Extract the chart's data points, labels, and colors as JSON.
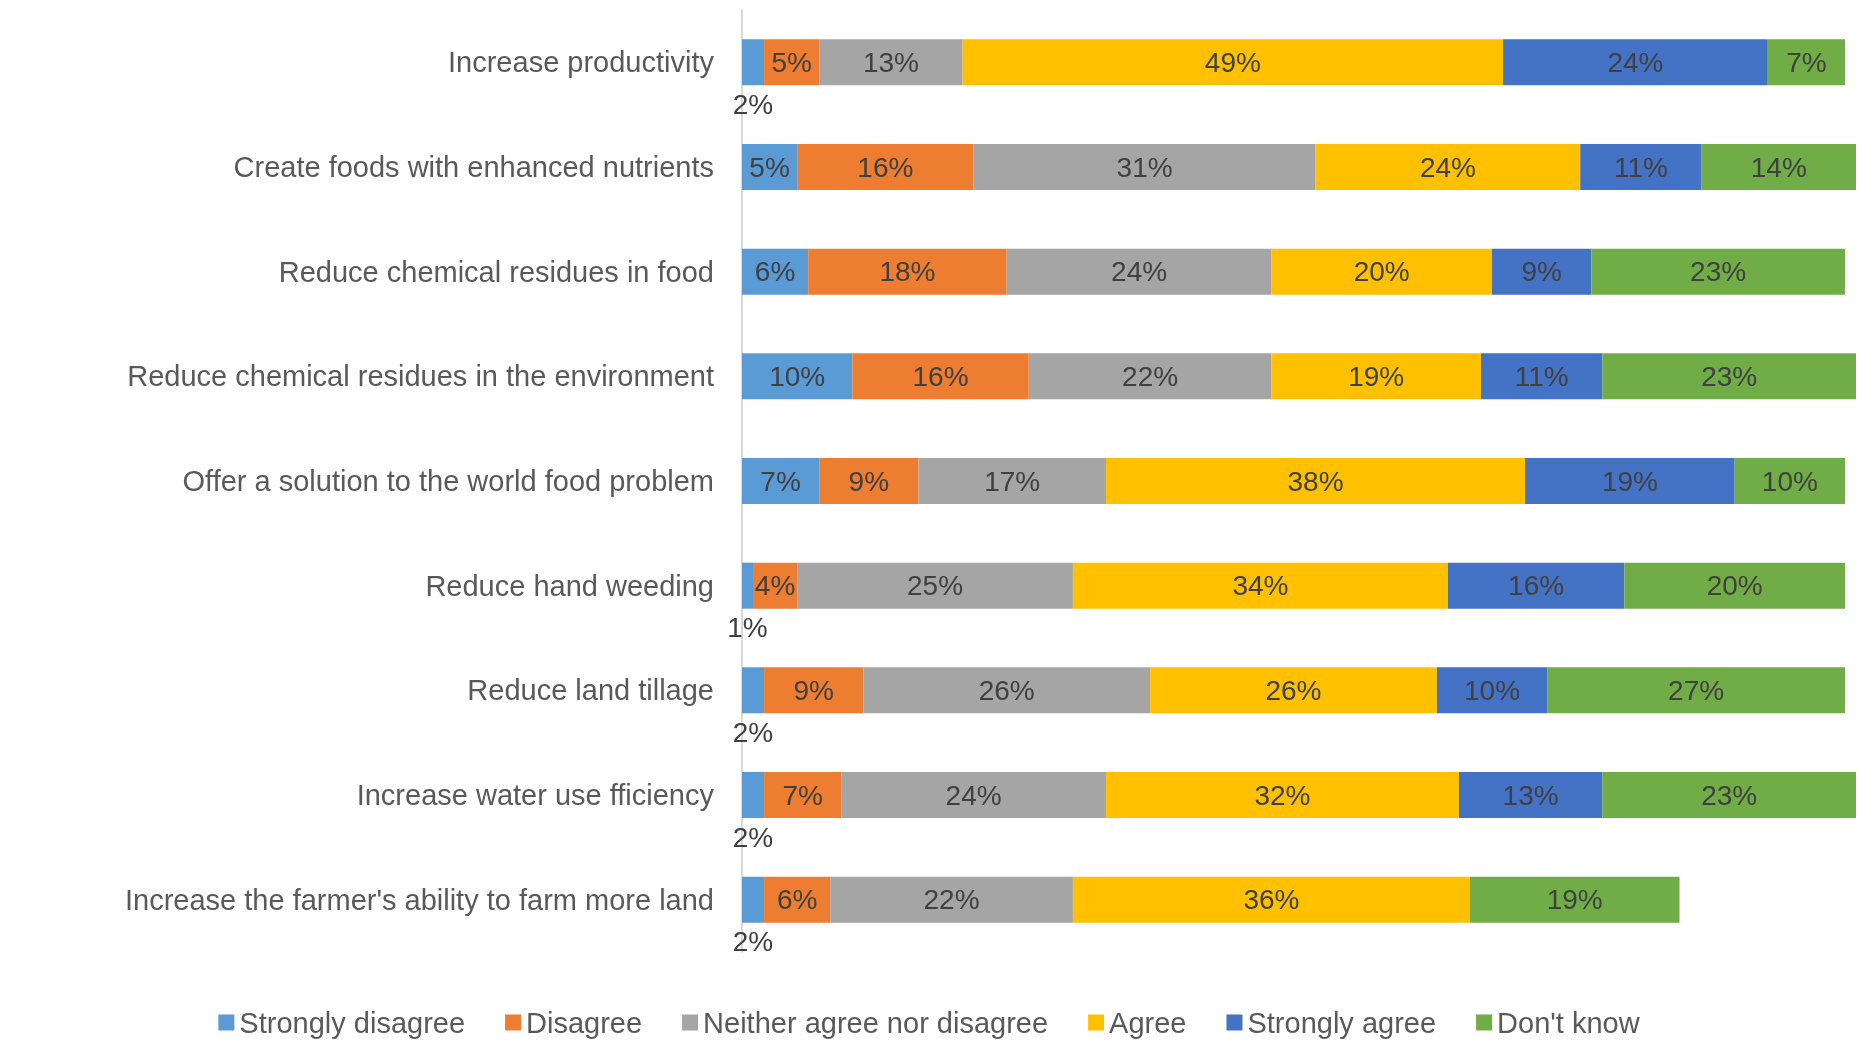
{
  "chart_data": {
    "type": "bar",
    "orientation": "horizontal",
    "stacked": true,
    "legend": "bottom",
    "categories": [
      "Increase productivity",
      "Create foods with enhanced nutrients",
      "Reduce chemical residues in food",
      "Reduce chemical residues in the environment",
      "Offer a solution to the world food problem",
      "Reduce hand weeding",
      "Reduce land tillage",
      "Increase water use fficiency",
      "Increase the farmer's ability to farm more land"
    ],
    "series": [
      {
        "name": "Strongly disagree",
        "color": "#5b9bd5",
        "values": [
          2,
          5,
          6,
          10,
          7,
          1,
          2,
          2,
          2
        ],
        "value_labels": [
          "2%",
          "5%",
          "6%",
          "10%",
          "7%",
          "1%",
          "2%",
          "2%",
          "2%"
        ]
      },
      {
        "name": "Disagree",
        "color": "#ed7d31",
        "values": [
          5,
          16,
          18,
          16,
          9,
          4,
          9,
          7,
          6
        ],
        "value_labels": [
          "5%",
          "16%",
          "18%",
          "16%",
          "9%",
          "4%",
          "9%",
          "7%",
          "6%"
        ]
      },
      {
        "name": "Neither agree nor disagree",
        "color": "#a5a5a5",
        "values": [
          13,
          31,
          24,
          22,
          17,
          25,
          26,
          24,
          22
        ],
        "value_labels": [
          "13%",
          "31%",
          "24%",
          "22%",
          "17%",
          "25%",
          "26%",
          "24%",
          "22%"
        ]
      },
      {
        "name": "Agree",
        "color": "#ffc000",
        "values": [
          49,
          24,
          20,
          19,
          38,
          34,
          26,
          32,
          36
        ],
        "value_labels": [
          "49%",
          "24%",
          "20%",
          "19%",
          "38%",
          "34%",
          "26%",
          "32%",
          "36%"
        ]
      },
      {
        "name": "Strongly agree",
        "color": "#4472c4",
        "values": [
          24,
          11,
          9,
          11,
          19,
          16,
          10,
          13,
          null
        ],
        "value_labels": [
          "24%",
          "11%",
          "9%",
          "11%",
          "19%",
          "16%",
          "10%",
          "13%",
          null
        ]
      },
      {
        "name": "Don't know",
        "color": "#70ad47",
        "values": [
          7,
          14,
          23,
          23,
          10,
          20,
          27,
          23,
          19
        ],
        "value_labels": [
          "7%",
          "14%",
          "23%",
          "23%",
          "10%",
          "20%",
          "27%",
          "23%",
          "19%"
        ]
      }
    ]
  }
}
